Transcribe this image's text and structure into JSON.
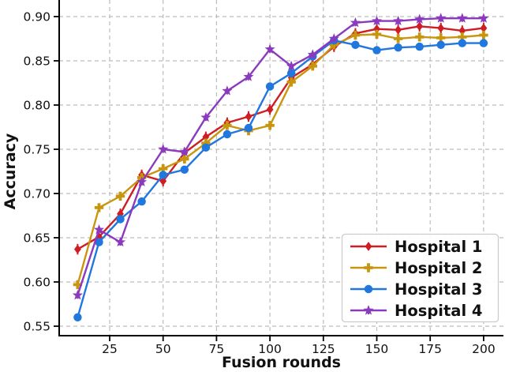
{
  "chart_data": {
    "type": "line",
    "title": "",
    "xlabel": "Fusion rounds",
    "ylabel": "Accuracy",
    "x": [
      10,
      20,
      30,
      40,
      50,
      60,
      70,
      80,
      90,
      100,
      110,
      120,
      130,
      140,
      150,
      160,
      170,
      180,
      190,
      200
    ],
    "x_ticks": [
      25,
      50,
      75,
      100,
      125,
      150,
      175,
      200
    ],
    "x_tick_labels": [
      "25",
      "50",
      "75",
      "100",
      "125",
      "150",
      "175",
      "200"
    ],
    "y_ticks": [
      0.55,
      0.6,
      0.65,
      0.7,
      0.75,
      0.8,
      0.85,
      0.9
    ],
    "y_tick_labels": [
      "0.55",
      "0.60",
      "0.65",
      "0.70",
      "0.75",
      "0.80",
      "0.85",
      "0.90"
    ],
    "xlim": [
      1,
      210
    ],
    "ylim": [
      0.539,
      0.919
    ],
    "grid": "dashed-both",
    "grid_color": "#bcbcbc",
    "legend_position": "lower right",
    "series": [
      {
        "name": "Hospital 1",
        "color": "#cf1d24",
        "marker": "diamond",
        "error_approx": 0.006,
        "values": [
          0.637,
          0.651,
          0.677,
          0.721,
          0.714,
          0.746,
          0.764,
          0.78,
          0.787,
          0.795,
          0.831,
          0.846,
          0.866,
          0.881,
          0.886,
          0.885,
          0.889,
          0.887,
          0.884,
          0.887
        ]
      },
      {
        "name": "Hospital 2",
        "color": "#c8960e",
        "marker": "plus",
        "error_approx": 0.004,
        "values": [
          0.597,
          0.684,
          0.697,
          0.718,
          0.728,
          0.739,
          0.757,
          0.777,
          0.771,
          0.777,
          0.826,
          0.844,
          0.868,
          0.879,
          0.88,
          0.875,
          0.877,
          0.876,
          0.877,
          0.879
        ]
      },
      {
        "name": "Hospital 3",
        "color": "#2077dd",
        "marker": "circle",
        "error_approx": 0.003,
        "values": [
          0.56,
          0.645,
          0.671,
          0.691,
          0.721,
          0.727,
          0.752,
          0.767,
          0.774,
          0.821,
          0.836,
          0.855,
          0.873,
          0.868,
          0.862,
          0.865,
          0.866,
          0.868,
          0.87,
          0.87
        ]
      },
      {
        "name": "Hospital 4",
        "color": "#8b3abe",
        "marker": "star",
        "error_approx": 0.004,
        "values": [
          0.585,
          0.659,
          0.645,
          0.713,
          0.75,
          0.747,
          0.786,
          0.816,
          0.832,
          0.863,
          0.844,
          0.857,
          0.875,
          0.893,
          0.895,
          0.895,
          0.897,
          0.898,
          0.898,
          0.898
        ]
      }
    ]
  }
}
